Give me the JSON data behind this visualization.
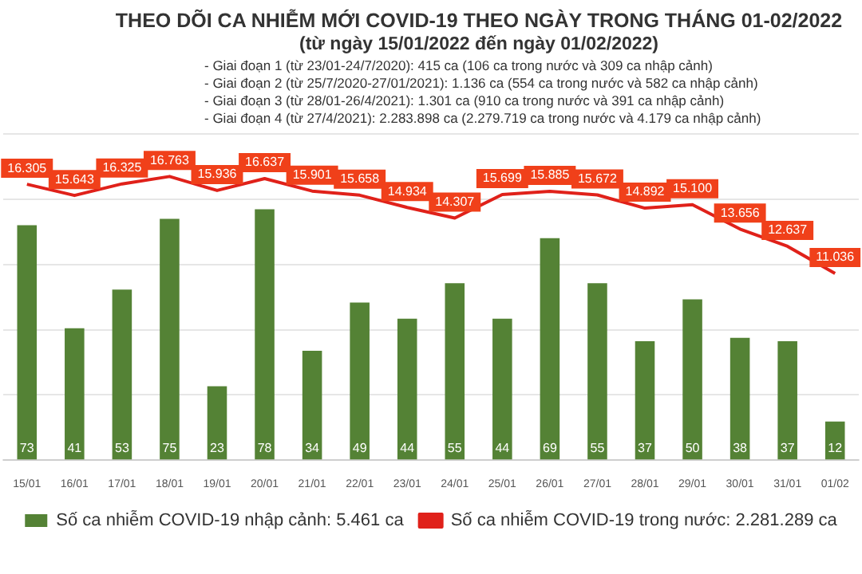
{
  "chart_data": {
    "type": "bar",
    "title": "THEO DÕI CA NHIỄM MỚI COVID-19 THEO NGÀY TRONG THÁNG 01-02/2022",
    "subtitle": "(từ ngày 15/01/2022 đến ngày 01/02/2022)",
    "annotations": [
      "- Giai đoạn 1 (từ 23/01-24/7/2020): 415 ca (106 ca trong nước và 309 ca nhập cảnh)",
      "- Giai đoạn 2 (từ 25/7/2020-27/01/2021): 1.136 ca (554 ca trong nước và 582 ca nhập cảnh)",
      "- Giai đoạn 3 (từ 28/01-26/4/2021): 1.301 ca (910 ca trong nước và 391 ca nhập cảnh)",
      "- Giai đoạn 4 (từ 27/4/2021): 2.283.898 ca (2.279.719 ca trong nước và 4.179 ca nhập cảnh)"
    ],
    "categories": [
      "15/01",
      "16/01",
      "17/01",
      "18/01",
      "19/01",
      "20/01",
      "21/01",
      "22/01",
      "23/01",
      "24/01",
      "25/01",
      "26/01",
      "27/01",
      "28/01",
      "29/01",
      "30/01",
      "31/01",
      "01/02"
    ],
    "series": [
      {
        "name": "Số ca nhiễm COVID-19 nhập cảnh: 5.461 ca",
        "color": "#548235",
        "values": [
          73,
          41,
          53,
          75,
          23,
          78,
          34,
          49,
          44,
          55,
          44,
          69,
          55,
          37,
          50,
          38,
          37,
          12
        ],
        "value_labels": [
          "73",
          "41",
          "53",
          "75",
          "23",
          "78",
          "34",
          "49",
          "44",
          "55",
          "44",
          "69",
          "55",
          "37",
          "50",
          "38",
          "37",
          "12"
        ]
      },
      {
        "name": "Số ca nhiễm COVID-19 trong nước: 2.281.289 ca",
        "type": "line",
        "axis": "y2",
        "color": "#e0211a",
        "values": [
          16305,
          15643,
          16325,
          16763,
          15936,
          16637,
          15901,
          15658,
          14934,
          14307,
          15699,
          15885,
          15672,
          14892,
          15100,
          13656,
          12637,
          11036
        ],
        "value_labels": [
          "16.305",
          "15.643",
          "16.325",
          "16.763",
          "15.936",
          "16.637",
          "15.901",
          "15.658",
          "14.934",
          "14.307",
          "15.699",
          "15.885",
          "15.672",
          "14.892",
          "15.100",
          "13.656",
          "12.637",
          "11.036"
        ]
      }
    ],
    "grid": "y",
    "legend": "bottom",
    "marker": "none"
  }
}
